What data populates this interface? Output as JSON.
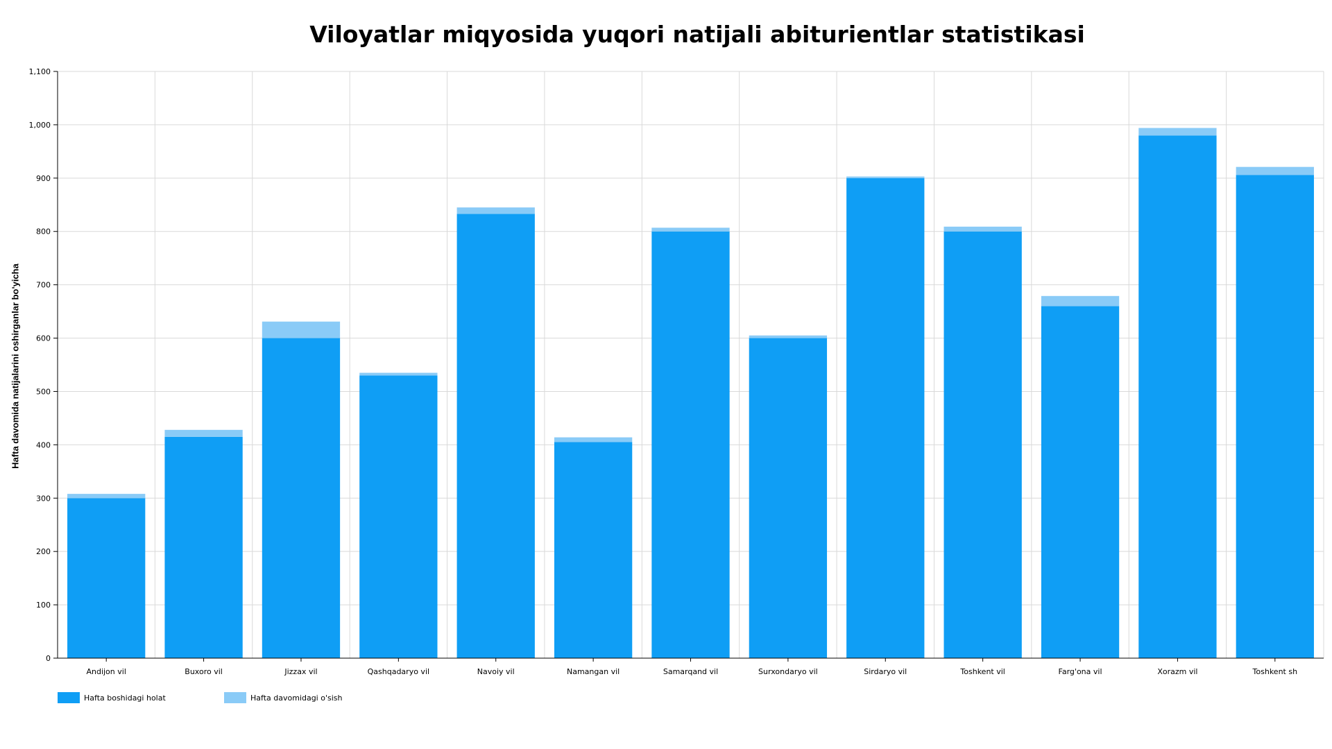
{
  "chart_data": {
    "type": "bar",
    "stacked": true,
    "title": "Viloyatlar miqyosida yuqori natijali abiturientlar statistikasi",
    "xlabel": "",
    "ylabel": "Hafta davomida natijalarini oshirganlar bo'yicha",
    "ylim": [
      0,
      1100
    ],
    "yticks": [
      "0",
      "100",
      "200",
      "300",
      "400",
      "500",
      "600",
      "700",
      "800",
      "900",
      "1,000",
      "1,100"
    ],
    "grid": true,
    "legend_position": "bottom-left",
    "categories": [
      "Andijon vil",
      "Buxoro vil",
      "Jizzax vil",
      "Qashqadaryo vil",
      "Navoiy vil",
      "Namangan vil",
      "Samarqand vil",
      "Surxondaryo vil",
      "Sirdaryo vil",
      "Toshkent vil",
      "Farg'ona vil",
      "Xorazm vil",
      "Toshkent sh"
    ],
    "series": [
      {
        "name": "Hafta boshidagi holat",
        "color": "#0f9ef5",
        "values": [
          300,
          415,
          600,
          530,
          833,
          405,
          800,
          600,
          900,
          800,
          660,
          980,
          906
        ]
      },
      {
        "name": "Hafta davomidagi o'sish",
        "color": "#8acbf7",
        "values": [
          8,
          13,
          31,
          5,
          12,
          9,
          7,
          5,
          3,
          9,
          19,
          14,
          15
        ]
      }
    ]
  }
}
